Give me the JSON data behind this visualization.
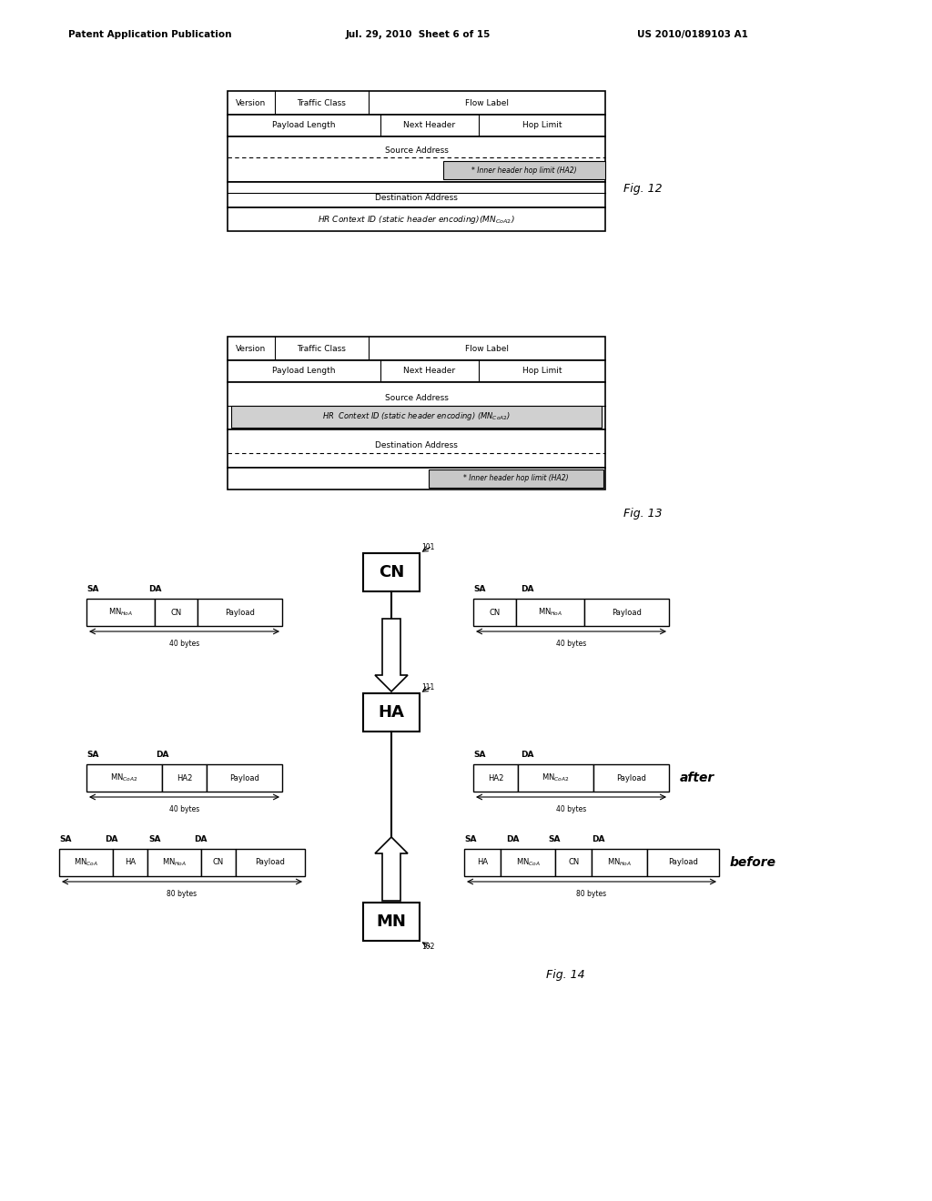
{
  "header_text_left": "Patent Application Publication",
  "header_text_mid": "Jul. 29, 2010  Sheet 6 of 15",
  "header_text_right": "US 2010/0189103 A1",
  "fig12_label": "Fig. 12",
  "fig13_label": "Fig. 13",
  "fig14_label": "Fig. 14",
  "bg_color": "#ffffff"
}
